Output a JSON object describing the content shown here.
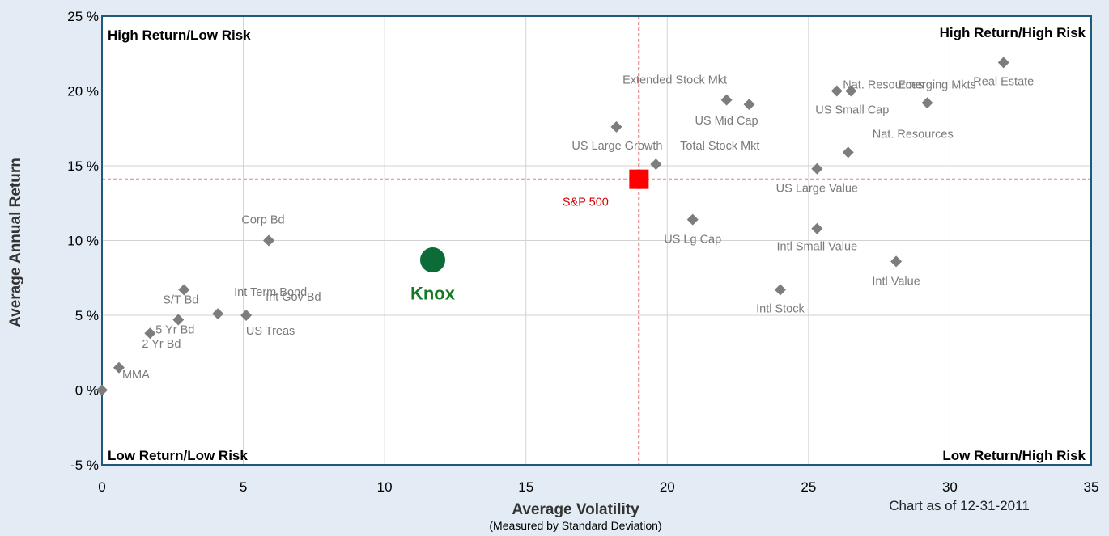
{
  "colors": {
    "background": "#e3ebf4",
    "plot_background": "#ffffff",
    "frame": "#1f5a7a",
    "asset_marker": "#7d7d7d",
    "asset_label": "#7a7a7a",
    "benchmark": "#ff0000",
    "benchmark_label": "#d40000",
    "highlight": "#0c6b37",
    "highlight_label": "#147a22"
  },
  "chart_data": {
    "type": "scatter",
    "xlabel": "Average Volatility",
    "xlabel_sub": "(Measured by Standard Deviation)",
    "ylabel": "Average Annual Return",
    "xlim": [
      0,
      35
    ],
    "ylim": [
      -5,
      25
    ],
    "x_ticks": [
      0,
      5,
      10,
      15,
      20,
      25,
      30,
      35
    ],
    "y_ticks": [
      -5,
      0,
      5,
      10,
      15,
      20,
      25
    ],
    "y_tick_suffix": " %",
    "grid": true,
    "note": "Chart as of 12-31-2011",
    "quadrant_labels": {
      "top_left": "High Return/Low Risk",
      "top_right": "High Return/High Risk",
      "bottom_left": "Low Return/Low Risk",
      "bottom_right": "Low Return/High Risk"
    },
    "reference": {
      "name": "S&P 500",
      "x": 19.0,
      "y": 14.1
    },
    "highlight": {
      "name": "Knox",
      "x": 11.7,
      "y": 8.7
    },
    "points": [
      {
        "label": "MMA",
        "x": 0.6,
        "y": 1.5
      },
      {
        "label": "",
        "x": 0.0,
        "y": 0.0
      },
      {
        "label": "2 Yr Bd",
        "x": 1.7,
        "y": 3.8
      },
      {
        "label": "5 Yr Bd",
        "x": 2.7,
        "y": 4.7
      },
      {
        "label": "S/T Bd",
        "x": 2.9,
        "y": 6.7
      },
      {
        "label": "Int Term Bond",
        "x": 4.1,
        "y": 5.1
      },
      {
        "label": "Int Gov Bd",
        "x": 5.1,
        "y": 5.0
      },
      {
        "label": "US Treas",
        "x": 0,
        "y": 0,
        "label_only": true
      },
      {
        "label": "Corp Bd",
        "x": 5.9,
        "y": 10.0
      },
      {
        "label": "US Large Growth",
        "x": 18.2,
        "y": 17.6
      },
      {
        "label": "Total Stock Mkt",
        "x": 19.6,
        "y": 15.1
      },
      {
        "label": "Extended Stock Mkt",
        "x": 22.1,
        "y": 19.4
      },
      {
        "label": "US Mid Cap",
        "x": 22.9,
        "y": 19.1
      },
      {
        "label": "US Lg Cap",
        "x": 20.9,
        "y": 11.4
      },
      {
        "label": "Intl Stock",
        "x": 24.0,
        "y": 6.7
      },
      {
        "label": "Intl Small Value",
        "x": 25.3,
        "y": 10.8
      },
      {
        "label": "US Large Value",
        "x": 25.3,
        "y": 14.8
      },
      {
        "label": "Nat. Resources",
        "x": 26.4,
        "y": 15.9
      },
      {
        "label": "US Small Cap",
        "x": 26.0,
        "y": 20.0
      },
      {
        "label": "Nat. Resources",
        "x": 26.5,
        "y": 20.0
      },
      {
        "label": "Emerging Mkts",
        "x": 29.2,
        "y": 19.2
      },
      {
        "label": "Real Estate",
        "x": 31.9,
        "y": 21.9
      },
      {
        "label": "Intl Value",
        "x": 28.1,
        "y": 8.6
      }
    ]
  }
}
